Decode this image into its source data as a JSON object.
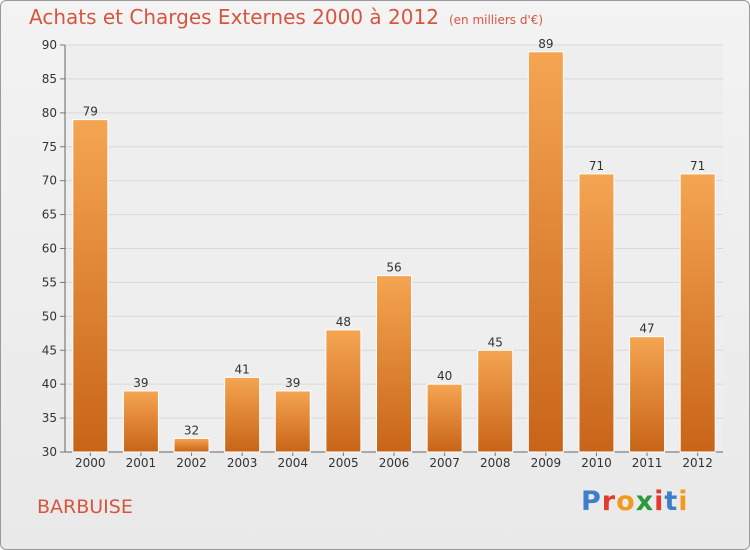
{
  "header": {
    "title": "Achats et Charges Externes 2000 à 2012",
    "subtitle": "(en milliers d'€)"
  },
  "location": "BARBUISE",
  "logo": {
    "text": "Proxiti",
    "letter_colors": [
      "#3d7fc8",
      "#e23a2e",
      "#f29a1e",
      "#2a9a3c",
      "#e23a2e",
      "#3d7fc8",
      "#f29a1e"
    ]
  },
  "colors": {
    "bar_top": "#f5a552",
    "bar_bottom": "#c86418",
    "title": "#d5563f"
  },
  "chart_data": {
    "type": "bar",
    "categories": [
      "2000",
      "2001",
      "2002",
      "2003",
      "2004",
      "2005",
      "2006",
      "2007",
      "2008",
      "2009",
      "2010",
      "2011",
      "2012"
    ],
    "values": [
      79,
      39,
      32,
      41,
      39,
      48,
      56,
      40,
      45,
      89,
      71,
      47,
      71
    ],
    "ylim": [
      30,
      90
    ],
    "yticks": [
      30,
      35,
      40,
      45,
      50,
      55,
      60,
      65,
      70,
      75,
      80,
      85,
      90
    ],
    "grid": "horizontal",
    "legend": "none"
  }
}
